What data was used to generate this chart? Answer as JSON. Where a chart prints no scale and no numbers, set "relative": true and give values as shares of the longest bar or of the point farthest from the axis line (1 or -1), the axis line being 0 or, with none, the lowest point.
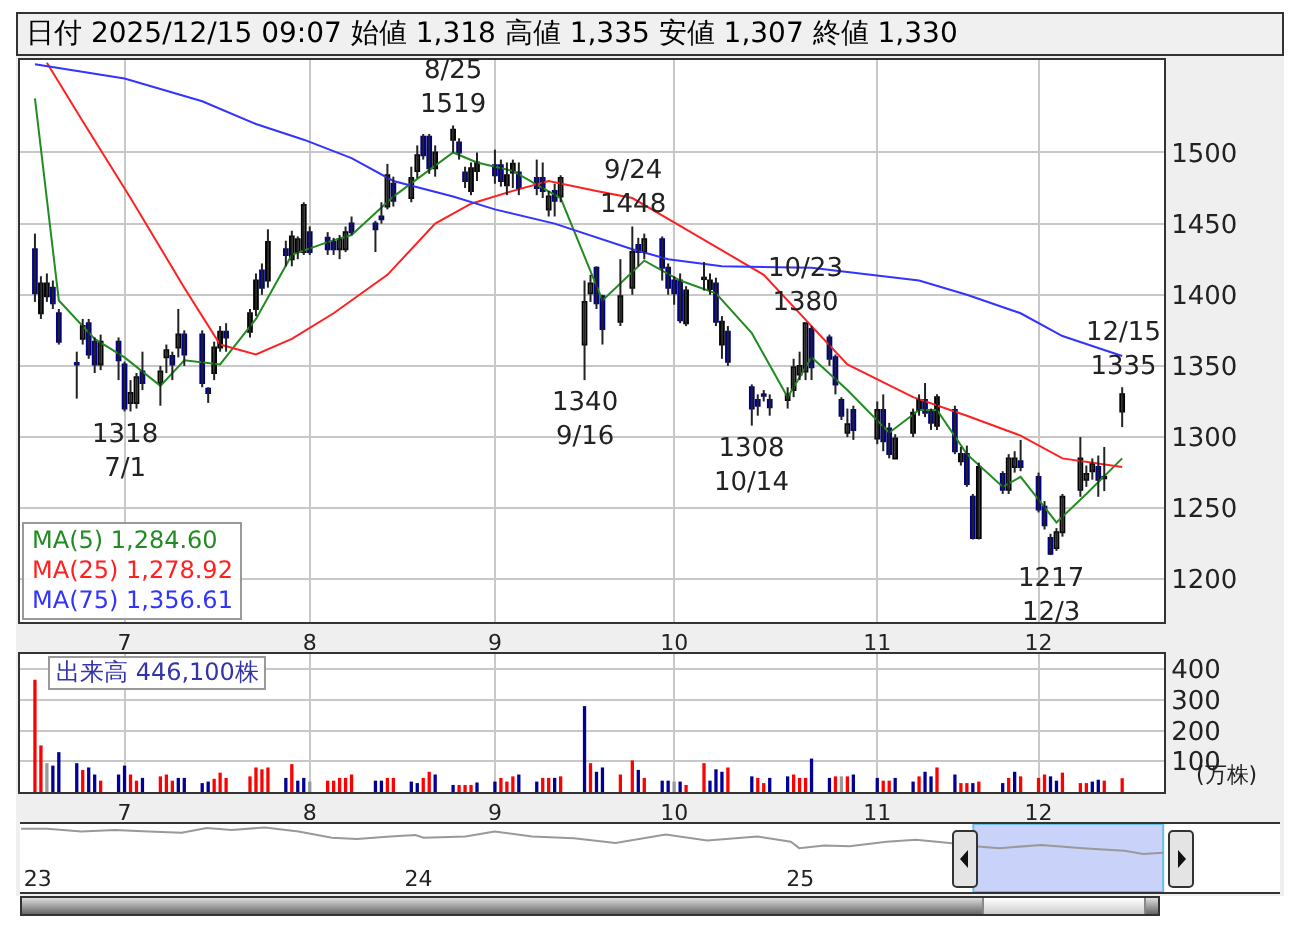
{
  "chart_data": [
    {
      "type": "candlestick",
      "title": "日付 2025/12/15 09:07 始値 1,318 高値 1,335 安値 1,307 終値 1,330",
      "x": [
        "2025-06-16",
        "2025-06-17",
        "2025-06-18",
        "2025-06-19",
        "2025-06-20",
        "2025-06-23",
        "2025-06-24",
        "2025-06-25",
        "2025-06-26",
        "2025-06-27",
        "2025-06-30",
        "2025-07-01",
        "2025-07-02",
        "2025-07-03",
        "2025-07-04",
        "2025-07-07",
        "2025-07-08",
        "2025-07-09",
        "2025-07-10",
        "2025-07-11",
        "2025-07-14",
        "2025-07-15",
        "2025-07-16",
        "2025-07-17",
        "2025-07-18",
        "2025-07-22",
        "2025-07-23",
        "2025-07-24",
        "2025-07-25",
        "2025-07-28",
        "2025-07-29",
        "2025-07-30",
        "2025-07-31",
        "2025-08-01",
        "2025-08-04",
        "2025-08-05",
        "2025-08-06",
        "2025-08-07",
        "2025-08-08",
        "2025-08-12",
        "2025-08-13",
        "2025-08-14",
        "2025-08-15",
        "2025-08-18",
        "2025-08-19",
        "2025-08-20",
        "2025-08-21",
        "2025-08-22",
        "2025-08-25",
        "2025-08-26",
        "2025-08-27",
        "2025-08-28",
        "2025-08-29",
        "2025-09-01",
        "2025-09-02",
        "2025-09-03",
        "2025-09-04",
        "2025-09-05",
        "2025-09-08",
        "2025-09-09",
        "2025-09-10",
        "2025-09-11",
        "2025-09-12",
        "2025-09-16",
        "2025-09-17",
        "2025-09-18",
        "2025-09-19",
        "2025-09-22",
        "2025-09-24",
        "2025-09-25",
        "2025-09-26",
        "2025-09-29",
        "2025-09-30",
        "2025-10-01",
        "2025-10-02",
        "2025-10-03",
        "2025-10-06",
        "2025-10-07",
        "2025-10-08",
        "2025-10-09",
        "2025-10-10",
        "2025-10-14",
        "2025-10-15",
        "2025-10-16",
        "2025-10-17",
        "2025-10-20",
        "2025-10-21",
        "2025-10-22",
        "2025-10-23",
        "2025-10-24",
        "2025-10-27",
        "2025-10-28",
        "2025-10-29",
        "2025-10-30",
        "2025-10-31",
        "2025-11-04",
        "2025-11-05",
        "2025-11-06",
        "2025-11-07",
        "2025-11-10",
        "2025-11-11",
        "2025-11-12",
        "2025-11-13",
        "2025-11-14",
        "2025-11-17",
        "2025-11-18",
        "2025-11-19",
        "2025-11-20",
        "2025-11-21",
        "2025-11-25",
        "2025-11-26",
        "2025-11-27",
        "2025-11-28",
        "2025-12-01",
        "2025-12-02",
        "2025-12-03",
        "2025-12-04",
        "2025-12-05",
        "2025-12-08",
        "2025-12-09",
        "2025-12-10",
        "2025-12-11",
        "2025-12-12",
        "2025-12-15"
      ],
      "ohlc": [
        [
          1432,
          1443,
          1395,
          1401
        ],
        [
          1387,
          1413,
          1383,
          1408
        ],
        [
          1399,
          1415,
          1395,
          1408
        ],
        [
          1405,
          1410,
          1390,
          1394
        ],
        [
          1387,
          1390,
          1365,
          1367
        ],
        [
          1352,
          1360,
          1327,
          1351
        ],
        [
          1369,
          1383,
          1365,
          1378
        ],
        [
          1380,
          1383,
          1355,
          1358
        ],
        [
          1367,
          1370,
          1345,
          1351
        ],
        [
          1351,
          1372,
          1347,
          1367
        ],
        [
          1367,
          1370,
          1340,
          1354
        ],
        [
          1351,
          1353,
          1318,
          1320
        ],
        [
          1324,
          1340,
          1318,
          1331
        ],
        [
          1324,
          1345,
          1320,
          1342
        ],
        [
          1346,
          1360,
          1333,
          1338
        ],
        [
          1338,
          1350,
          1322,
          1346
        ],
        [
          1356,
          1365,
          1345,
          1361
        ],
        [
          1357,
          1360,
          1340,
          1351
        ],
        [
          1363,
          1390,
          1356,
          1372
        ],
        [
          1372,
          1375,
          1350,
          1358
        ],
        [
          1372,
          1375,
          1335,
          1338
        ],
        [
          1334,
          1335,
          1324,
          1331
        ],
        [
          1345,
          1367,
          1340,
          1363
        ],
        [
          1363,
          1378,
          1360,
          1374
        ],
        [
          1374,
          1380,
          1360,
          1370
        ],
        [
          1374,
          1390,
          1370,
          1387
        ],
        [
          1390,
          1415,
          1385,
          1410
        ],
        [
          1417,
          1422,
          1400,
          1405
        ],
        [
          1410,
          1446,
          1405,
          1437
        ],
        [
          1432,
          1438,
          1420,
          1428
        ],
        [
          1425,
          1445,
          1420,
          1441
        ],
        [
          1430,
          1441,
          1425,
          1439
        ],
        [
          1430,
          1465,
          1428,
          1463
        ],
        [
          1444,
          1448,
          1428,
          1430
        ],
        [
          1440,
          1444,
          1428,
          1432
        ],
        [
          1437,
          1440,
          1428,
          1432
        ],
        [
          1432,
          1442,
          1425,
          1439
        ],
        [
          1432,
          1448,
          1430,
          1444
        ],
        [
          1450,
          1455,
          1442,
          1444
        ],
        [
          1450,
          1452,
          1430,
          1446
        ],
        [
          1455,
          1465,
          1450,
          1453
        ],
        [
          1462,
          1492,
          1460,
          1484
        ],
        [
          1478,
          1483,
          1462,
          1466
        ],
        [
          1468,
          1490,
          1465,
          1482
        ],
        [
          1487,
          1505,
          1482,
          1498
        ],
        [
          1511,
          1513,
          1495,
          1498
        ],
        [
          1511,
          1513,
          1485,
          1489
        ],
        [
          1489,
          1505,
          1483,
          1500
        ],
        [
          1509,
          1519,
          1500,
          1516
        ],
        [
          1507,
          1510,
          1495,
          1500
        ],
        [
          1486,
          1490,
          1475,
          1480
        ],
        [
          1473,
          1493,
          1470,
          1489
        ],
        [
          1487,
          1500,
          1480,
          1493
        ],
        [
          1491,
          1502,
          1478,
          1484
        ],
        [
          1491,
          1495,
          1476,
          1480
        ],
        [
          1477,
          1493,
          1470,
          1484
        ],
        [
          1486,
          1495,
          1475,
          1492
        ],
        [
          1486,
          1493,
          1470,
          1475
        ],
        [
          1482,
          1495,
          1470,
          1475
        ],
        [
          1482,
          1493,
          1468,
          1473
        ],
        [
          1460,
          1473,
          1455,
          1469
        ],
        [
          1473,
          1478,
          1455,
          1466
        ],
        [
          1469,
          1484,
          1465,
          1482
        ],
        [
          1365,
          1410,
          1340,
          1395
        ],
        [
          1401,
          1414,
          1395,
          1408
        ],
        [
          1419,
          1420,
          1390,
          1394
        ],
        [
          1399,
          1400,
          1365,
          1376
        ],
        [
          1381,
          1425,
          1378,
          1399
        ],
        [
          1405,
          1448,
          1400,
          1430
        ],
        [
          1435,
          1440,
          1420,
          1430
        ],
        [
          1430,
          1443,
          1425,
          1439
        ],
        [
          1439,
          1441,
          1410,
          1419
        ],
        [
          1419,
          1422,
          1400,
          1405
        ],
        [
          1410,
          1413,
          1393,
          1401
        ],
        [
          1410,
          1415,
          1380,
          1382
        ],
        [
          1380,
          1406,
          1378,
          1403
        ],
        [
          1411,
          1423,
          1403,
          1412
        ],
        [
          1404,
          1415,
          1400,
          1410
        ],
        [
          1408,
          1412,
          1378,
          1381
        ],
        [
          1365,
          1385,
          1355,
          1381
        ],
        [
          1374,
          1378,
          1350,
          1353
        ],
        [
          1335,
          1337,
          1308,
          1320
        ],
        [
          1326,
          1330,
          1315,
          1322
        ],
        [
          1330,
          1333,
          1325,
          1329
        ],
        [
          1326,
          1330,
          1315,
          1321
        ],
        [
          1326,
          1335,
          1320,
          1330
        ],
        [
          1333,
          1355,
          1328,
          1349
        ],
        [
          1344,
          1360,
          1340,
          1350
        ],
        [
          1346,
          1380,
          1340,
          1380
        ],
        [
          1376,
          1378,
          1340,
          1349
        ],
        [
          1370,
          1372,
          1350,
          1355
        ],
        [
          1356,
          1358,
          1330,
          1337
        ],
        [
          1326,
          1328,
          1312,
          1315
        ],
        [
          1303,
          1320,
          1300,
          1309
        ],
        [
          1319,
          1322,
          1298,
          1305
        ],
        [
          1299,
          1325,
          1295,
          1319
        ],
        [
          1319,
          1330,
          1290,
          1297
        ],
        [
          1306,
          1310,
          1285,
          1288
        ],
        [
          1285,
          1302,
          1285,
          1299
        ],
        [
          1303,
          1320,
          1300,
          1317
        ],
        [
          1319,
          1330,
          1315,
          1326
        ],
        [
          1326,
          1338,
          1314,
          1317
        ],
        [
          1319,
          1320,
          1305,
          1310
        ],
        [
          1308,
          1330,
          1305,
          1328
        ],
        [
          1319,
          1322,
          1288,
          1290
        ],
        [
          1283,
          1293,
          1280,
          1288
        ],
        [
          1288,
          1294,
          1265,
          1267
        ],
        [
          1258,
          1260,
          1228,
          1229
        ],
        [
          1229,
          1282,
          1228,
          1279
        ],
        [
          1274,
          1276,
          1260,
          1263
        ],
        [
          1263,
          1288,
          1260,
          1285
        ],
        [
          1279,
          1290,
          1275,
          1285
        ],
        [
          1283,
          1298,
          1276,
          1279
        ],
        [
          1272,
          1275,
          1247,
          1249
        ],
        [
          1251,
          1255,
          1235,
          1238
        ],
        [
          1229,
          1232,
          1217,
          1218
        ],
        [
          1222,
          1236,
          1220,
          1233
        ],
        [
          1233,
          1260,
          1230,
          1258
        ],
        [
          1263,
          1300,
          1258,
          1285
        ],
        [
          1270,
          1280,
          1265,
          1274
        ],
        [
          1276,
          1285,
          1270,
          1281
        ],
        [
          1279,
          1287,
          1258,
          1270
        ],
        [
          1271,
          1293,
          1262,
          1272
        ],
        [
          1318,
          1335,
          1307,
          1330
        ]
      ],
      "series": [
        {
          "name": "MA(5) 1,284.60",
          "type": "line",
          "color": "#228b22",
          "x": [
            "2025-06-16",
            "2025-06-20",
            "2025-06-26",
            "2025-07-01",
            "2025-07-07",
            "2025-07-11",
            "2025-07-17",
            "2025-07-23",
            "2025-07-29",
            "2025-08-04",
            "2025-08-08",
            "2025-08-15",
            "2025-08-25",
            "2025-08-29",
            "2025-09-04",
            "2025-09-09",
            "2025-09-12",
            "2025-09-19",
            "2025-09-26",
            "2025-10-02",
            "2025-10-08",
            "2025-10-14",
            "2025-10-20",
            "2025-10-24",
            "2025-10-30",
            "2025-11-06",
            "2025-11-11",
            "2025-11-14",
            "2025-11-19",
            "2025-11-25",
            "2025-11-28",
            "2025-12-04",
            "2025-12-09",
            "2025-12-15"
          ],
          "values": [
            1538,
            1396,
            1369,
            1356,
            1336,
            1354,
            1351,
            1383,
            1428,
            1437,
            1442,
            1469,
            1500,
            1493,
            1487,
            1475,
            1468,
            1396,
            1424,
            1410,
            1401,
            1373,
            1328,
            1356,
            1333,
            1303,
            1319,
            1319,
            1288,
            1265,
            1272,
            1240,
            1260,
            1285
          ]
        },
        {
          "name": "MA(25) 1,278.92",
          "type": "line",
          "color": "#ff2020",
          "x": [
            "2025-06-18",
            "2025-06-24",
            "2025-07-02",
            "2025-07-11",
            "2025-07-17",
            "2025-07-23",
            "2025-07-29",
            "2025-08-05",
            "2025-08-14",
            "2025-08-22",
            "2025-08-28",
            "2025-09-04",
            "2025-09-10",
            "2025-09-18",
            "2025-09-24",
            "2025-10-03",
            "2025-10-16",
            "2025-10-24",
            "2025-10-30",
            "2025-11-10",
            "2025-11-19",
            "2025-11-28",
            "2025-12-05",
            "2025-12-15"
          ],
          "values": [
            1563,
            1522,
            1468,
            1405,
            1365,
            1358,
            1369,
            1387,
            1414,
            1450,
            1464,
            1473,
            1480,
            1473,
            1468,
            1446,
            1414,
            1378,
            1351,
            1328,
            1315,
            1301,
            1285,
            1279
          ]
        },
        {
          "name": "MA(75) 1,356.61",
          "type": "line",
          "color": "#3333ff",
          "x": [
            "2025-06-16",
            "2025-07-01",
            "2025-07-14",
            "2025-07-23",
            "2025-07-31",
            "2025-08-08",
            "2025-08-15",
            "2025-08-25",
            "2025-09-01",
            "2025-09-11",
            "2025-09-24",
            "2025-09-30",
            "2025-10-09",
            "2025-10-24",
            "2025-11-11",
            "2025-11-19",
            "2025-11-28",
            "2025-12-05",
            "2025-12-15"
          ],
          "values": [
            1562,
            1552,
            1536,
            1520,
            1509,
            1496,
            1480,
            1469,
            1460,
            1450,
            1432,
            1425,
            1420,
            1419,
            1410,
            1400,
            1387,
            1371,
            1357
          ]
        }
      ],
      "annotations": [
        {
          "text": "1318\n7/1",
          "x": "2025-07-01",
          "y": 1318
        },
        {
          "text": "8/25\n1519",
          "x": "2025-08-25",
          "y": 1519
        },
        {
          "text": "1340\n9/16",
          "x": "2025-09-16",
          "y": 1340
        },
        {
          "text": "9/24\n1448",
          "x": "2025-09-24",
          "y": 1448
        },
        {
          "text": "1308\n10/14",
          "x": "2025-10-14",
          "y": 1308
        },
        {
          "text": "10/23\n1380",
          "x": "2025-10-23",
          "y": 1380
        },
        {
          "text": "1217\n12/3",
          "x": "2025-12-03",
          "y": 1217
        },
        {
          "text": "12/15\n1335",
          "x": "2025-12-15",
          "y": 1335
        }
      ],
      "xlim": [
        "2025-06-13T12:00",
        "2025-12-22"
      ],
      "xticks": [
        {
          "value": "2025-07-01",
          "label": "7"
        },
        {
          "value": "2025-08-01",
          "label": "8"
        },
        {
          "value": "2025-09-01",
          "label": "9"
        },
        {
          "value": "2025-10-01",
          "label": "10"
        },
        {
          "value": "2025-11-04",
          "label": "11"
        },
        {
          "value": "2025-12-01",
          "label": "12"
        }
      ],
      "ylim": [
        1170,
        1565
      ],
      "yticks": [
        1200,
        1250,
        1300,
        1350,
        1400,
        1450,
        1500
      ],
      "grid": true,
      "legend": "bottom left",
      "line_style": "solid"
    },
    {
      "type": "bar",
      "title": "出来高 446,100株",
      "ylabel": "(万株)",
      "x": [
        "2025-06-16",
        "2025-06-17",
        "2025-06-18",
        "2025-06-19",
        "2025-06-20",
        "2025-06-23",
        "2025-06-24",
        "2025-06-25",
        "2025-06-26",
        "2025-06-27",
        "2025-06-30",
        "2025-07-01",
        "2025-07-02",
        "2025-07-03",
        "2025-07-04",
        "2025-07-07",
        "2025-07-08",
        "2025-07-09",
        "2025-07-10",
        "2025-07-11",
        "2025-07-14",
        "2025-07-15",
        "2025-07-16",
        "2025-07-17",
        "2025-07-18",
        "2025-07-22",
        "2025-07-23",
        "2025-07-24",
        "2025-07-25",
        "2025-07-28",
        "2025-07-29",
        "2025-07-30",
        "2025-07-31",
        "2025-08-01",
        "2025-08-04",
        "2025-08-05",
        "2025-08-06",
        "2025-08-07",
        "2025-08-08",
        "2025-08-12",
        "2025-08-13",
        "2025-08-14",
        "2025-08-15",
        "2025-08-18",
        "2025-08-19",
        "2025-08-20",
        "2025-08-21",
        "2025-08-22",
        "2025-08-25",
        "2025-08-26",
        "2025-08-27",
        "2025-08-28",
        "2025-08-29",
        "2025-09-01",
        "2025-09-02",
        "2025-09-03",
        "2025-09-04",
        "2025-09-05",
        "2025-09-08",
        "2025-09-09",
        "2025-09-10",
        "2025-09-11",
        "2025-09-12",
        "2025-09-16",
        "2025-09-17",
        "2025-09-18",
        "2025-09-19",
        "2025-09-22",
        "2025-09-24",
        "2025-09-25",
        "2025-09-26",
        "2025-09-29",
        "2025-09-30",
        "2025-10-01",
        "2025-10-02",
        "2025-10-03",
        "2025-10-06",
        "2025-10-07",
        "2025-10-08",
        "2025-10-09",
        "2025-10-10",
        "2025-10-14",
        "2025-10-15",
        "2025-10-16",
        "2025-10-17",
        "2025-10-20",
        "2025-10-21",
        "2025-10-22",
        "2025-10-23",
        "2025-10-24",
        "2025-10-27",
        "2025-10-28",
        "2025-10-29",
        "2025-10-30",
        "2025-10-31",
        "2025-11-04",
        "2025-11-05",
        "2025-11-06",
        "2025-11-07",
        "2025-11-10",
        "2025-11-11",
        "2025-11-12",
        "2025-11-13",
        "2025-11-14",
        "2025-11-17",
        "2025-11-18",
        "2025-11-19",
        "2025-11-20",
        "2025-11-21",
        "2025-11-25",
        "2025-11-26",
        "2025-11-27",
        "2025-11-28",
        "2025-12-01",
        "2025-12-02",
        "2025-12-03",
        "2025-12-04",
        "2025-12-05",
        "2025-12-08",
        "2025-12-09",
        "2025-12-10",
        "2025-12-11",
        "2025-12-12",
        "2025-12-15"
      ],
      "values": [
        366,
        152,
        94,
        86,
        130,
        94,
        72,
        80,
        57,
        37,
        57,
        86,
        57,
        37,
        46,
        51,
        57,
        37,
        46,
        46,
        29,
        34,
        43,
        63,
        46,
        51,
        80,
        74,
        80,
        46,
        91,
        37,
        46,
        34,
        37,
        37,
        46,
        46,
        57,
        37,
        37,
        46,
        46,
        34,
        29,
        46,
        66,
        57,
        23,
        23,
        23,
        23,
        31,
        34,
        46,
        34,
        51,
        57,
        34,
        46,
        46,
        46,
        51,
        280,
        94,
        66,
        80,
        57,
        103,
        72,
        46,
        37,
        37,
        34,
        34,
        23,
        94,
        37,
        74,
        66,
        80,
        51,
        46,
        29,
        46,
        51,
        57,
        46,
        46,
        109,
        46,
        51,
        51,
        51,
        57,
        46,
        37,
        37,
        46,
        34,
        51,
        66,
        51,
        80,
        57,
        29,
        29,
        29,
        34,
        29,
        46,
        66,
        51,
        46,
        57,
        51,
        37,
        63,
        29,
        29,
        34,
        40,
        37,
        45
      ],
      "colors": [
        "#ff0000",
        "#ff0000",
        "#999999",
        "#000099",
        "#000099",
        "#000099",
        "#ff0000",
        "#000099",
        "#000099",
        "#ff0000",
        "#000099",
        "#000099",
        "#ff0000",
        "#ff0000",
        "#000099",
        "#ff0000",
        "#ff0000",
        "#ff0000",
        "#000099",
        "#000099",
        "#000099",
        "#000099",
        "#ff0000",
        "#ff0000",
        "#ff0000",
        "#ff0000",
        "#ff0000",
        "#ff0000",
        "#ff0000",
        "#000099",
        "#ff0000",
        "#000099",
        "#000099",
        "#999999",
        "#ff0000",
        "#ff0000",
        "#ff0000",
        "#ff0000",
        "#ff0000",
        "#000099",
        "#000099",
        "#ff0000",
        "#ff0000",
        "#000099",
        "#000099",
        "#ff0000",
        "#ff0000",
        "#000099",
        "#000099",
        "#ff0000",
        "#ff0000",
        "#ff0000",
        "#000099",
        "#000099",
        "#ff0000",
        "#ff0000",
        "#ff0000",
        "#000099",
        "#000099",
        "#ff0000",
        "#ff0000",
        "#000099",
        "#ff0000",
        "#000099",
        "#ff0000",
        "#000099",
        "#000099",
        "#ff0000",
        "#ff0000",
        "#000099",
        "#ff0000",
        "#000099",
        "#000099",
        "#999999",
        "#000099",
        "#ff0000",
        "#ff0000",
        "#000099",
        "#000099",
        "#000099",
        "#ff0000",
        "#000099",
        "#ff0000",
        "#ff0000",
        "#000099",
        "#000099",
        "#ff0000",
        "#ff0000",
        "#ff0000",
        "#000099",
        "#000099",
        "#ff0000",
        "#999999",
        "#ff0000",
        "#000099",
        "#000099",
        "#ff0000",
        "#ff0000",
        "#000099",
        "#000099",
        "#ff0000",
        "#000099",
        "#000099",
        "#ff0000",
        "#000099",
        "#ff0000",
        "#ff0000",
        "#000099",
        "#ff0000",
        "#000099",
        "#ff0000",
        "#000099",
        "#ff0000",
        "#ff0000",
        "#ff0000",
        "#000099",
        "#000099",
        "#ff0000",
        "#ff0000",
        "#ff0000",
        "#000099",
        "#000099",
        "#ff0000",
        "#ff0000"
      ],
      "xlim": [
        "2025-06-13T12:00",
        "2025-12-22"
      ],
      "xticks": [
        {
          "value": "2025-07-01",
          "label": "7"
        },
        {
          "value": "2025-08-01",
          "label": "8"
        },
        {
          "value": "2025-09-01",
          "label": "9"
        },
        {
          "value": "2025-10-01",
          "label": "10"
        },
        {
          "value": "2025-11-04",
          "label": "11"
        },
        {
          "value": "2025-12-01",
          "label": "12"
        }
      ],
      "ylim": [
        0,
        450
      ],
      "yticks": [
        100,
        200,
        300,
        400
      ],
      "grid": true
    },
    {
      "type": "line",
      "relative": true,
      "color": "#999999",
      "x": [
        "2022-12-16",
        "2023-01-10",
        "2023-02-12",
        "2023-03-16",
        "2023-04-17",
        "2023-05-19",
        "2023-06-12",
        "2023-07-06",
        "2023-08-07",
        "2023-09-08",
        "2023-10-10",
        "2023-11-03",
        "2023-12-05",
        "2023-12-29",
        "2024-01-06",
        "2024-02-15",
        "2024-03-14",
        "2024-04-19",
        "2024-05-29",
        "2024-07-08",
        "2024-08-25",
        "2024-10-04",
        "2024-11-21",
        "2024-12-23",
        "2024-12-31",
        "2025-01-24",
        "2025-02-17",
        "2025-03-25",
        "2025-04-22",
        "2025-05-24",
        "2025-06-17",
        "2025-07-11",
        "2025-08-20",
        "2025-09-29",
        "2025-11-08",
        "2025-11-26",
        "2025-12-15"
      ],
      "values": [
        0.95,
        0.95,
        0.85,
        0.9,
        0.85,
        0.8,
        0.98,
        0.9,
        1,
        0.85,
        0.61,
        0.56,
        0.66,
        0.71,
        0.61,
        0.66,
        0.85,
        0.66,
        0.59,
        0.41,
        0.73,
        0.51,
        0.66,
        0.46,
        0.22,
        0.32,
        0.29,
        0.46,
        0.54,
        0.41,
        0.29,
        0.22,
        0.34,
        0.22,
        0.12,
        0,
        0.05
      ],
      "bands": [
        {
          "axis": "x",
          "from": "2025-06-16",
          "to": "2025-12-15",
          "color": "#b8c4f8"
        }
      ],
      "xlim": [
        "2022-12-15",
        "2026-04-06"
      ],
      "xticks": [
        {
          "value": "2023-01-01",
          "label": "23"
        },
        {
          "value": "2024-01-01",
          "label": "24"
        },
        {
          "value": "2025-01-01",
          "label": "25"
        }
      ],
      "tick_labels": "x"
    }
  ]
}
